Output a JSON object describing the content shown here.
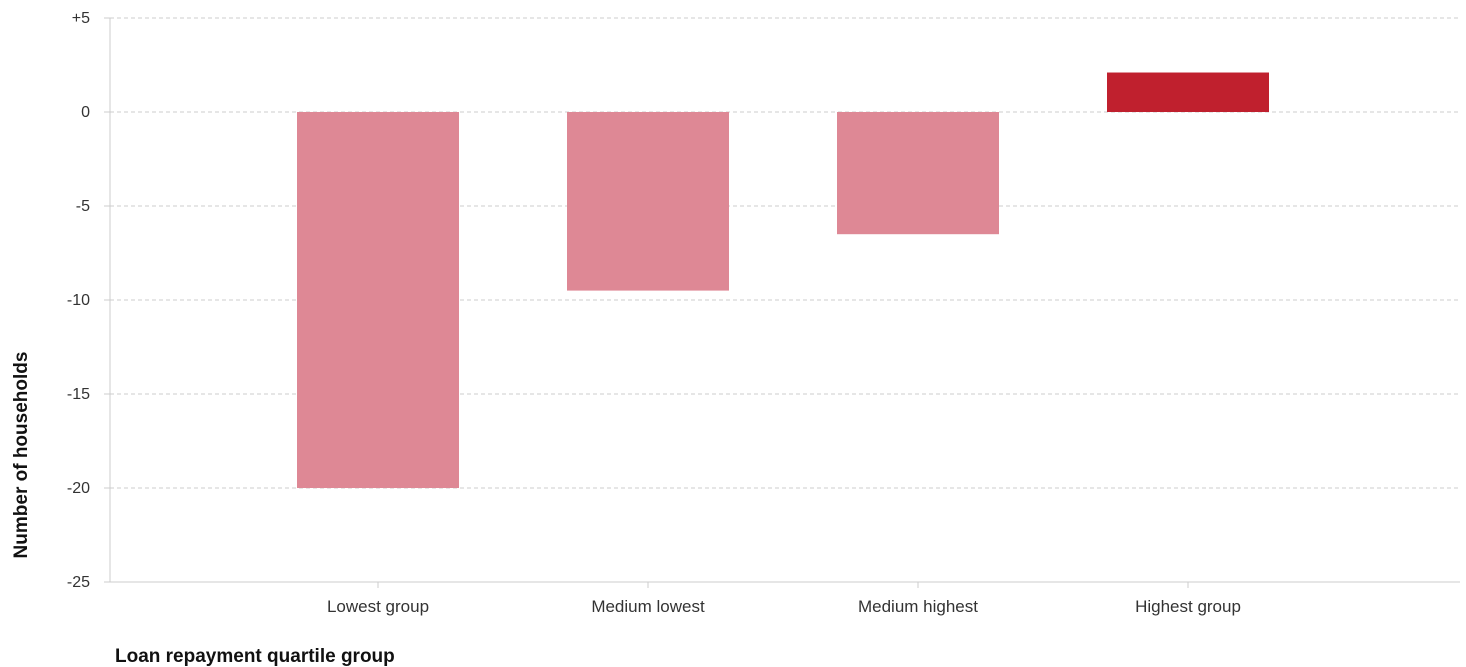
{
  "chart_data": {
    "type": "bar",
    "categories": [
      "Lowest group",
      "Medium lowest",
      "Medium highest",
      "Highest group"
    ],
    "values": [
      -20,
      -9.5,
      -6.5,
      2.1
    ],
    "bar_colors": [
      "#de8895",
      "#de8895",
      "#de8895",
      "#c0202e"
    ],
    "xlabel": "Loan repayment quartile group",
    "ylabel": "Number of households",
    "ylim": [
      -25,
      5
    ],
    "yticks": [
      5,
      0,
      -5,
      -10,
      -15,
      -20,
      -25
    ],
    "ytick_labels": [
      "+5",
      "0",
      "-5",
      "-10",
      "-15",
      "-20",
      "-25"
    ],
    "grid": true,
    "grid_color": "#cccccc",
    "axis_color": "#cccccc",
    "text_color": "#333333"
  }
}
